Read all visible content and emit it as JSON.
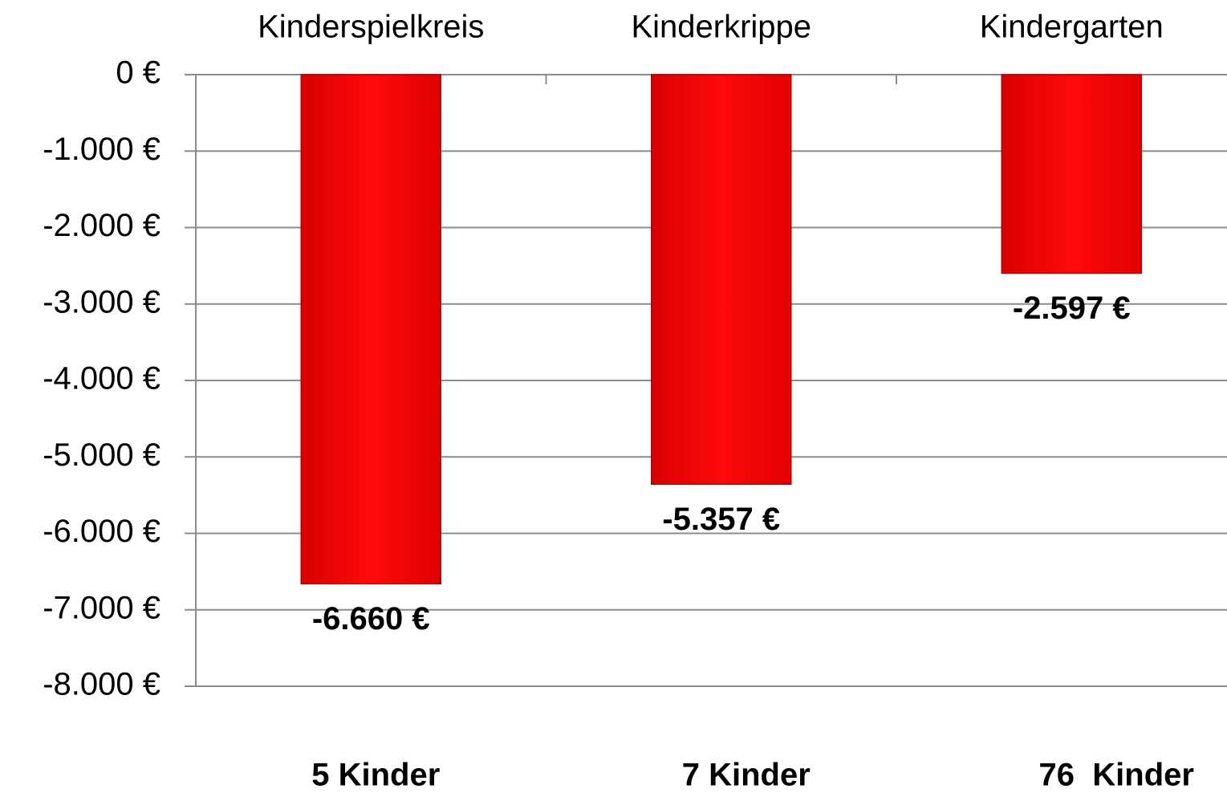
{
  "chart_data": {
    "type": "bar",
    "categories": [
      "Kinderspielkreis",
      "Kinderkrippe",
      "Kindergarten"
    ],
    "values": [
      -6660,
      -5357,
      -2597
    ],
    "value_labels": [
      "-6.660 €",
      "-5.357 €",
      "-2.597 €"
    ],
    "annotations": [
      "5 Kinder",
      "7 Kinder",
      "76  Kinder"
    ],
    "color": "#ff0000",
    "ylim": [
      -8000,
      0
    ],
    "yticks": [
      {
        "value": 0,
        "label": "0 €"
      },
      {
        "value": -1000,
        "label": "-1.000 €"
      },
      {
        "value": -2000,
        "label": "-2.000 €"
      },
      {
        "value": -3000,
        "label": "-3.000 €"
      },
      {
        "value": -4000,
        "label": "-4.000 €"
      },
      {
        "value": -5000,
        "label": "-5.000 €"
      },
      {
        "value": -6000,
        "label": "-6.000 €"
      },
      {
        "value": -7000,
        "label": "-7.000 €"
      },
      {
        "value": -8000,
        "label": "-8.000 €"
      }
    ],
    "grid": true
  }
}
